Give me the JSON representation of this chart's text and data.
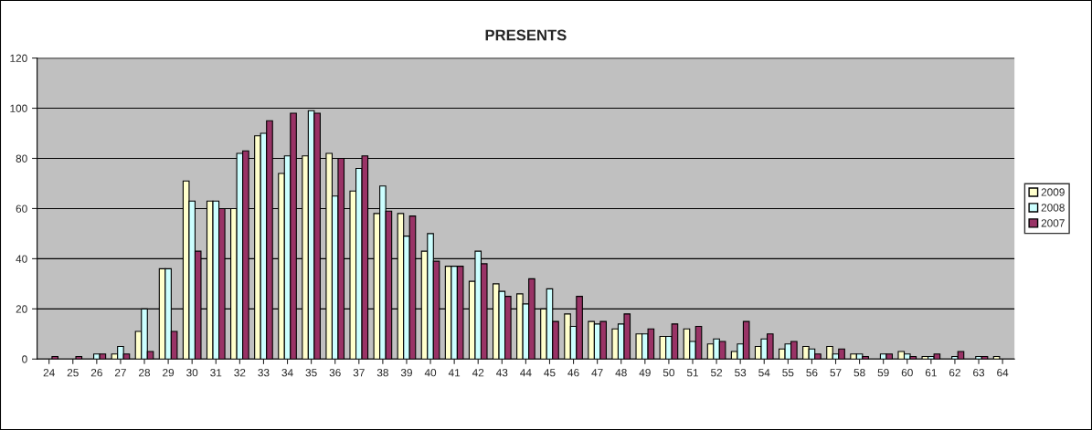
{
  "chart_data": {
    "type": "bar",
    "title": "PRESENTS",
    "categories": [
      "24",
      "25",
      "26",
      "27",
      "28",
      "29",
      "30",
      "31",
      "32",
      "33",
      "34",
      "35",
      "36",
      "37",
      "38",
      "39",
      "40",
      "41",
      "42",
      "43",
      "44",
      "45",
      "46",
      "47",
      "48",
      "49",
      "50",
      "51",
      "52",
      "53",
      "54",
      "55",
      "56",
      "57",
      "58",
      "59",
      "60",
      "61",
      "62",
      "63",
      "64"
    ],
    "series": [
      {
        "name": "2009",
        "color": "#ffffcc",
        "values": [
          null,
          null,
          null,
          2,
          11,
          36,
          71,
          63,
          60,
          89,
          74,
          81,
          82,
          67,
          58,
          58,
          43,
          37,
          31,
          30,
          26,
          20,
          18,
          15,
          12,
          10,
          9,
          12,
          6,
          3,
          5,
          4,
          5,
          5,
          2,
          null,
          3,
          1,
          null,
          null,
          1
        ]
      },
      {
        "name": "2008",
        "color": "#ccffff",
        "values": [
          null,
          null,
          2,
          5,
          20,
          36,
          63,
          63,
          82,
          90,
          81,
          99,
          65,
          76,
          69,
          49,
          50,
          37,
          43,
          27,
          22,
          28,
          13,
          14,
          14,
          10,
          9,
          7,
          8,
          6,
          8,
          6,
          4,
          2,
          2,
          2,
          2,
          1,
          1,
          1,
          null
        ]
      },
      {
        "name": "2007",
        "color": "#993366",
        "values": [
          1,
          1,
          2,
          2,
          3,
          11,
          43,
          60,
          83,
          95,
          98,
          98,
          80,
          81,
          59,
          57,
          39,
          37,
          38,
          25,
          32,
          15,
          25,
          15,
          18,
          12,
          14,
          13,
          7,
          15,
          10,
          7,
          2,
          4,
          1,
          2,
          1,
          2,
          3,
          1,
          null
        ]
      }
    ],
    "ylim": [
      0,
      120
    ],
    "yticks": [
      0,
      20,
      40,
      60,
      80,
      100,
      120
    ],
    "grid": "y",
    "legend": "right"
  }
}
